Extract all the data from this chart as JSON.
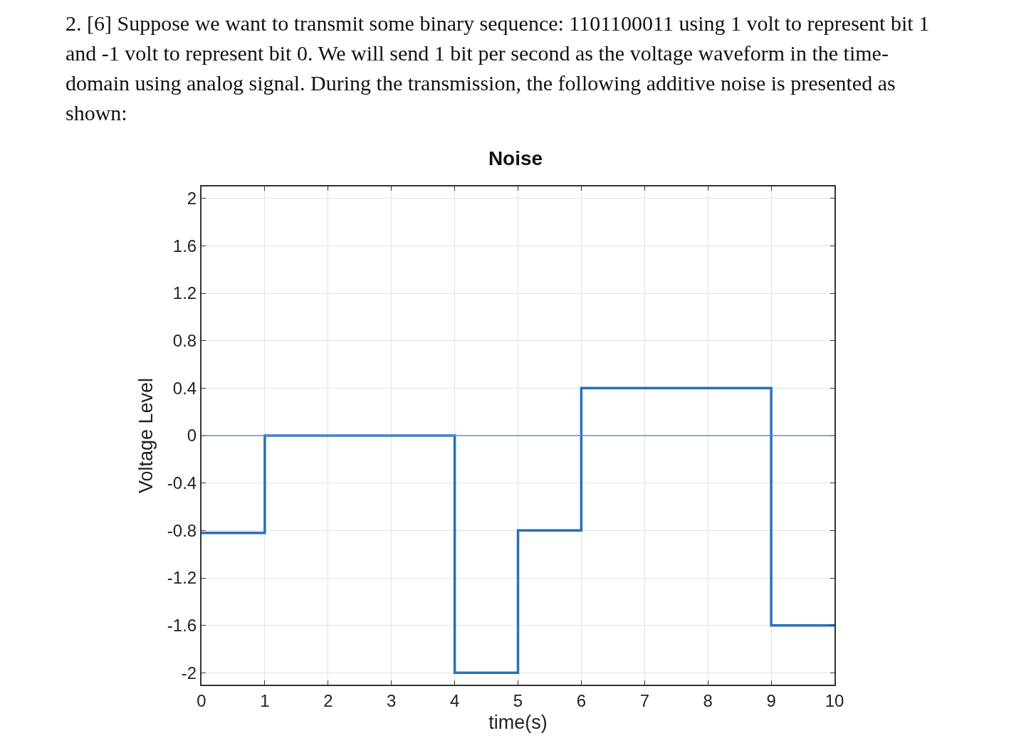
{
  "chart_data": {
    "type": "step",
    "title": "Noise",
    "xlabel": "time(s)",
    "ylabel": "Voltage Level",
    "annotations": [
      "2. [6] Suppose we want to transmit some binary sequence: 1101100011 using 1 volt to represent bit 1 and -1 volt to represent bit 0. We will send 1 bit per second as the voltage waveform in the time-domain using analog signal. During the transmission, the following additive noise is presented as shown:"
    ],
    "x": [
      0,
      1,
      4,
      5,
      6,
      9,
      10
    ],
    "series": [
      {
        "color": "#2a6fbd",
        "values": [
          -0.82,
          0,
          -2,
          -0.8,
          0.4,
          -1.6,
          -1.6
        ]
      }
    ],
    "xlim": [
      0,
      10
    ],
    "xticks": [
      0,
      1,
      2,
      3,
      4,
      5,
      6,
      7,
      8,
      9,
      10
    ],
    "ylim": [
      -2.1,
      2.1
    ],
    "yticks": [
      -2,
      -1.6,
      -1.2,
      -0.8,
      -0.4,
      0,
      0.4,
      0.8,
      1.2,
      1.6,
      2
    ],
    "ref_lines": [
      {
        "axis": "y",
        "value": 0,
        "color": "#5b93cf"
      }
    ],
    "grid": true
  }
}
